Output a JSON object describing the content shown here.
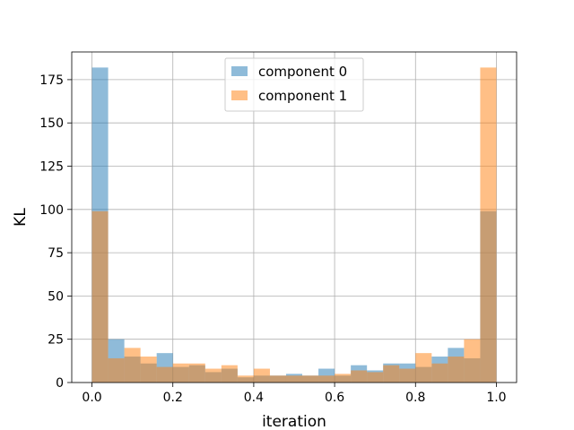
{
  "chart_data": {
    "type": "histogram",
    "xlabel": "iteration",
    "ylabel": "KL",
    "xlim": [
      -0.05,
      1.05
    ],
    "ylim": [
      0,
      191
    ],
    "xticks": [
      0.0,
      0.2,
      0.4,
      0.6,
      0.8,
      1.0
    ],
    "xtick_labels": [
      "0.0",
      "0.2",
      "0.4",
      "0.6",
      "0.8",
      "1.0"
    ],
    "yticks": [
      0,
      25,
      50,
      75,
      100,
      125,
      150,
      175
    ],
    "ytick_labels": [
      "0",
      "25",
      "50",
      "75",
      "100",
      "125",
      "150",
      "175"
    ],
    "grid": true,
    "legend_position": "top-center",
    "bin_edges": [
      0.0,
      0.04,
      0.08,
      0.12,
      0.16,
      0.2,
      0.24,
      0.28,
      0.32,
      0.36,
      0.4,
      0.44,
      0.48,
      0.52,
      0.56,
      0.6,
      0.64,
      0.68,
      0.72,
      0.76,
      0.8,
      0.84,
      0.88,
      0.92,
      0.96,
      1.0
    ],
    "series": [
      {
        "name": "component 0",
        "color": "#1f77b4",
        "values": [
          182,
          25,
          15,
          11,
          17,
          9,
          10,
          6,
          8,
          3,
          4,
          4,
          5,
          4,
          8,
          4,
          10,
          7,
          11,
          11,
          9,
          15,
          20,
          14,
          99
        ]
      },
      {
        "name": "component 1",
        "color": "#ff7f0e",
        "values": [
          99,
          14,
          20,
          15,
          9,
          11,
          11,
          8,
          10,
          4,
          8,
          4,
          4,
          4,
          4,
          5,
          7,
          6,
          10,
          8,
          17,
          11,
          15,
          25,
          182
        ]
      }
    ]
  }
}
